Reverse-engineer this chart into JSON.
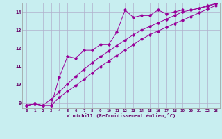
{
  "xlabel": "Windchill (Refroidissement éolien,°C)",
  "bg_color": "#c8eef0",
  "grid_color": "#b0b0cc",
  "line_color": "#990099",
  "xlim": [
    -0.5,
    23.5
  ],
  "ylim": [
    8.7,
    14.5
  ],
  "xticks": [
    0,
    1,
    2,
    3,
    4,
    5,
    6,
    7,
    8,
    9,
    10,
    11,
    12,
    13,
    14,
    15,
    16,
    17,
    18,
    19,
    20,
    21,
    22,
    23
  ],
  "yticks": [
    9,
    10,
    11,
    12,
    13,
    14
  ],
  "series1_x": [
    0,
    1,
    2,
    3,
    4,
    5,
    6,
    7,
    8,
    9,
    10,
    11,
    12,
    13,
    14,
    15,
    16,
    17,
    18,
    19,
    20,
    21,
    22,
    23
  ],
  "series1_y": [
    8.85,
    8.95,
    8.85,
    8.85,
    10.4,
    11.55,
    11.45,
    11.9,
    11.9,
    12.2,
    12.2,
    12.9,
    14.1,
    13.7,
    13.8,
    13.8,
    14.1,
    13.9,
    14.0,
    14.1,
    14.1,
    14.2,
    14.3,
    14.45
  ],
  "series2_x": [
    0,
    1,
    2,
    3,
    4,
    5,
    6,
    7,
    8,
    9,
    10,
    11,
    12,
    13,
    14,
    15,
    16,
    17,
    18,
    19,
    20,
    21,
    22,
    23
  ],
  "series2_y": [
    8.85,
    8.95,
    8.85,
    9.2,
    9.6,
    10.05,
    10.45,
    10.85,
    11.2,
    11.55,
    11.85,
    12.15,
    12.45,
    12.75,
    13.0,
    13.2,
    13.4,
    13.6,
    13.8,
    14.0,
    14.1,
    14.2,
    14.35,
    14.45
  ],
  "series3_x": [
    0,
    1,
    2,
    3,
    4,
    5,
    6,
    7,
    8,
    9,
    10,
    11,
    12,
    13,
    14,
    15,
    16,
    17,
    18,
    19,
    20,
    21,
    22,
    23
  ],
  "series3_y": [
    8.85,
    8.95,
    8.85,
    8.85,
    9.3,
    9.65,
    9.95,
    10.3,
    10.65,
    11.0,
    11.3,
    11.6,
    11.9,
    12.2,
    12.5,
    12.75,
    12.95,
    13.15,
    13.35,
    13.55,
    13.75,
    13.95,
    14.15,
    14.35
  ]
}
